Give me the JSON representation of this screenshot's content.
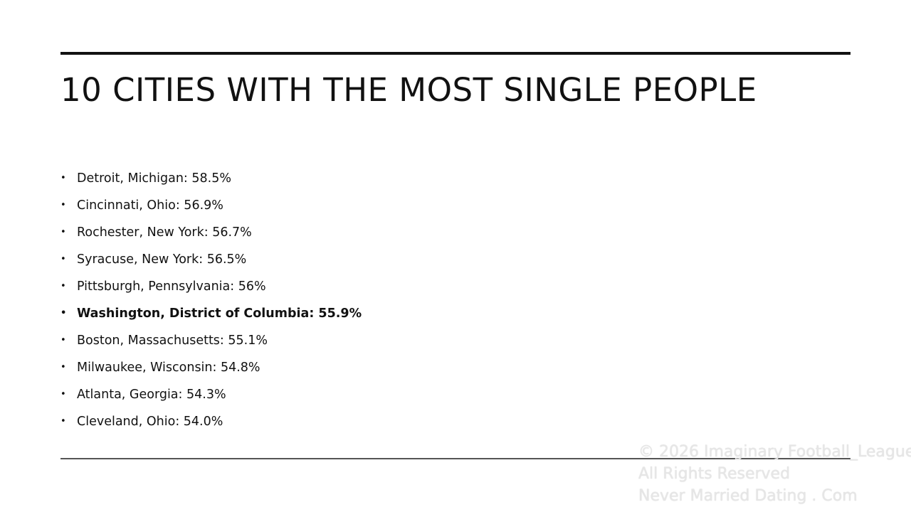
{
  "header": {
    "title": "10 CITIES WITH THE MOST SINGLE PEOPLE"
  },
  "list": {
    "items": [
      {
        "text": "Detroit, Michigan: 58.5%"
      },
      {
        "text": "Cincinnati, Ohio: 56.9%"
      },
      {
        "text": "Rochester, New York: 56.7%"
      },
      {
        "text": "Syracuse, New York: 56.5%"
      },
      {
        "text": "Pittsburgh, Pennsylvania: 56%"
      },
      {
        "text": "Washington, District of Columbia: 55.9%",
        "bold": true
      },
      {
        "text": "Boston, Massachusetts: 55.1%"
      },
      {
        "text": "Milwaukee, Wisconsin: 54.8%"
      },
      {
        "text": "Atlanta, Georgia: 54.3%"
      },
      {
        "text": "Cleveland, Ohio: 54.0%"
      }
    ]
  },
  "watermark": {
    "lines": [
      "© 2026 Imaginary Football_League",
      "All Rights Reserved",
      "Never Married Dating . Com"
    ]
  }
}
